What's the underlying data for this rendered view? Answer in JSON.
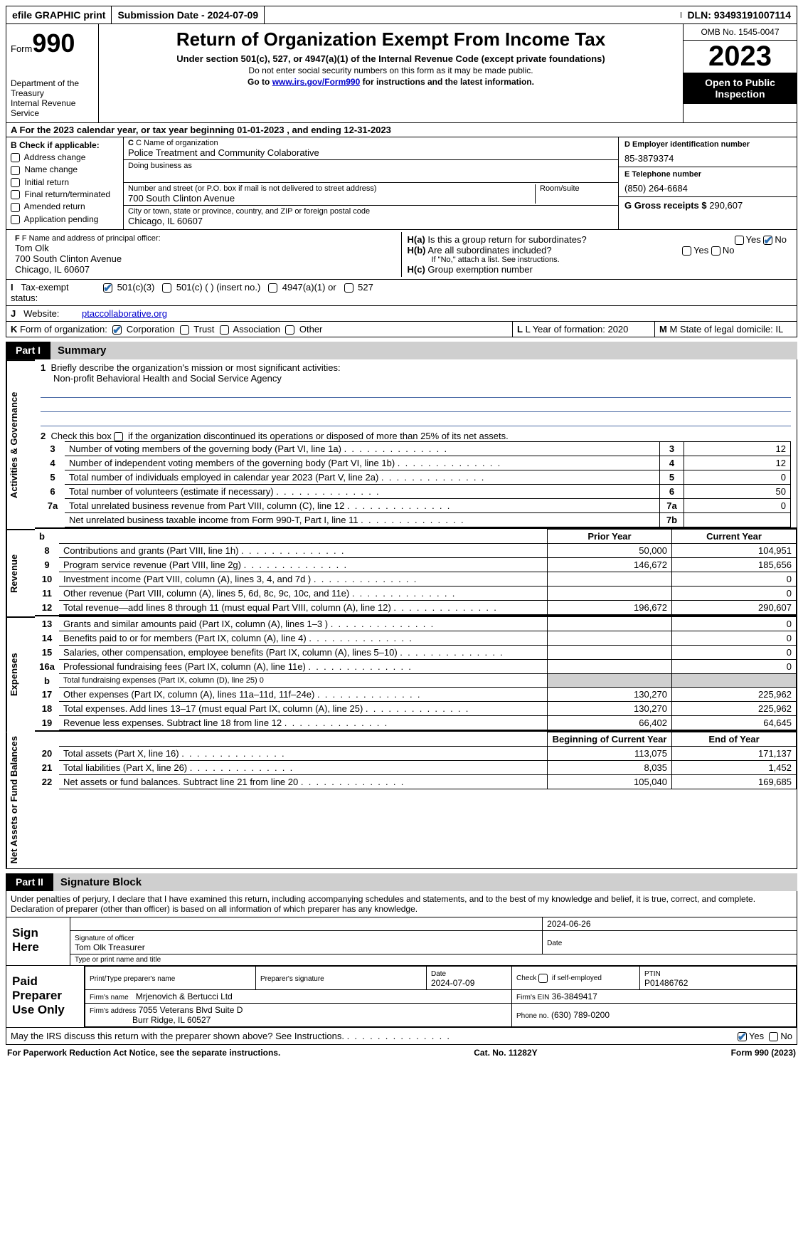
{
  "topbar": {
    "efile": "efile GRAPHIC print",
    "submission": "Submission Date - 2024-07-09",
    "dln": "DLN: 93493191007114"
  },
  "header": {
    "form_label": "Form",
    "form_num": "990",
    "title": "Return of Organization Exempt From Income Tax",
    "sub": "Under section 501(c), 527, or 4947(a)(1) of the Internal Revenue Code (except private foundations)",
    "note1": "Do not enter social security numbers on this form as it may be made public.",
    "note2_pre": "Go to ",
    "note2_link": "www.irs.gov/Form990",
    "note2_post": " for instructions and the latest information.",
    "dept": "Department of the Treasury\nInternal Revenue Service",
    "omb": "OMB No. 1545-0047",
    "year": "2023",
    "open": "Open to Public Inspection"
  },
  "rowA": "A For the 2023 calendar year, or tax year beginning 01-01-2023   , and ending 12-31-2023",
  "colB": {
    "hdr": "B Check if applicable:",
    "items": [
      "Address change",
      "Name change",
      "Initial return",
      "Final return/terminated",
      "Amended return",
      "Application pending"
    ]
  },
  "colC": {
    "name_lbl": "C Name of organization",
    "name": "Police Treatment and Community Colaborative",
    "dba_lbl": "Doing business as",
    "addr_lbl": "Number and street (or P.O. box if mail is not delivered to street address)",
    "addr": "700 South Clinton Avenue",
    "room_lbl": "Room/suite",
    "city_lbl": "City or town, state or province, country, and ZIP or foreign postal code",
    "city": "Chicago, IL  60607"
  },
  "colD": {
    "ein_lbl": "D Employer identification number",
    "ein": "85-3879374",
    "tel_lbl": "E Telephone number",
    "tel": "(850) 264-6684",
    "gross_lbl": "G Gross receipts $",
    "gross": "290,607"
  },
  "rowF": {
    "lbl": "F  Name and address of principal officer:",
    "name": "Tom Olk",
    "addr1": "700 South Clinton Avenue",
    "addr2": "Chicago, IL  60607"
  },
  "rowH": {
    "ha": "H(a)  Is this a group return for subordinates?",
    "hb": "H(b)  Are all subordinates included?",
    "hb_note": "If \"No,\" attach a list. See instructions.",
    "hc": "H(c)  Group exemption number"
  },
  "rowI": {
    "lbl": "I   Tax-exempt status:",
    "o1": "501(c)(3)",
    "o2": "501(c) (  ) (insert no.)",
    "o3": "4947(a)(1) or",
    "o4": "527"
  },
  "rowJ": {
    "lbl": "J   Website:",
    "val": "ptaccollaborative.org"
  },
  "rowK": {
    "lbl": "K Form of organization:",
    "o1": "Corporation",
    "o2": "Trust",
    "o3": "Association",
    "o4": "Other"
  },
  "rowL": {
    "lbl": "L Year of formation:",
    "val": "2020"
  },
  "rowM": {
    "lbl": "M State of legal domicile:",
    "val": "IL"
  },
  "part1": {
    "num": "Part I",
    "title": "Summary"
  },
  "summary": {
    "gov_label": "Activities & Governance",
    "rev_label": "Revenue",
    "exp_label": "Expenses",
    "net_label": "Net Assets or Fund Balances",
    "line1_lbl": "Briefly describe the organization's mission or most significant activities:",
    "line1_val": "Non-profit Behavioral Health and Social Service Agency",
    "line2": "Check this box        if the organization discontinued its operations or disposed of more than 25% of its net assets.",
    "rows_gov": [
      {
        "n": "3",
        "d": "Number of voting members of the governing body (Part VI, line 1a)",
        "box": "3",
        "v": "12"
      },
      {
        "n": "4",
        "d": "Number of independent voting members of the governing body (Part VI, line 1b)",
        "box": "4",
        "v": "12"
      },
      {
        "n": "5",
        "d": "Total number of individuals employed in calendar year 2023 (Part V, line 2a)",
        "box": "5",
        "v": "0"
      },
      {
        "n": "6",
        "d": "Total number of volunteers (estimate if necessary)",
        "box": "6",
        "v": "50"
      },
      {
        "n": "7a",
        "d": "Total unrelated business revenue from Part VIII, column (C), line 12",
        "box": "7a",
        "v": "0"
      },
      {
        "n": "",
        "d": "Net unrelated business taxable income from Form 990-T, Part I, line 11",
        "box": "7b",
        "v": ""
      }
    ],
    "prior_hdr": "Prior Year",
    "curr_hdr": "Current Year",
    "rows_rev": [
      {
        "n": "8",
        "d": "Contributions and grants (Part VIII, line 1h)",
        "p": "50,000",
        "c": "104,951"
      },
      {
        "n": "9",
        "d": "Program service revenue (Part VIII, line 2g)",
        "p": "146,672",
        "c": "185,656"
      },
      {
        "n": "10",
        "d": "Investment income (Part VIII, column (A), lines 3, 4, and 7d )",
        "p": "",
        "c": "0"
      },
      {
        "n": "11",
        "d": "Other revenue (Part VIII, column (A), lines 5, 6d, 8c, 9c, 10c, and 11e)",
        "p": "",
        "c": "0"
      },
      {
        "n": "12",
        "d": "Total revenue—add lines 8 through 11 (must equal Part VIII, column (A), line 12)",
        "p": "196,672",
        "c": "290,607"
      }
    ],
    "rows_exp": [
      {
        "n": "13",
        "d": "Grants and similar amounts paid (Part IX, column (A), lines 1–3 )",
        "p": "",
        "c": "0"
      },
      {
        "n": "14",
        "d": "Benefits paid to or for members (Part IX, column (A), line 4)",
        "p": "",
        "c": "0"
      },
      {
        "n": "15",
        "d": "Salaries, other compensation, employee benefits (Part IX, column (A), lines 5–10)",
        "p": "",
        "c": "0"
      },
      {
        "n": "16a",
        "d": "Professional fundraising fees (Part IX, column (A), line 11e)",
        "p": "",
        "c": "0"
      },
      {
        "n": "b",
        "d": "Total fundraising expenses (Part IX, column (D), line 25) 0",
        "p": "GREY",
        "c": "GREY",
        "small": true
      },
      {
        "n": "17",
        "d": "Other expenses (Part IX, column (A), lines 11a–11d, 11f–24e)",
        "p": "130,270",
        "c": "225,962"
      },
      {
        "n": "18",
        "d": "Total expenses. Add lines 13–17 (must equal Part IX, column (A), line 25)",
        "p": "130,270",
        "c": "225,962"
      },
      {
        "n": "19",
        "d": "Revenue less expenses. Subtract line 18 from line 12",
        "p": "66,402",
        "c": "64,645"
      }
    ],
    "beg_hdr": "Beginning of Current Year",
    "end_hdr": "End of Year",
    "rows_net": [
      {
        "n": "20",
        "d": "Total assets (Part X, line 16)",
        "p": "113,075",
        "c": "171,137"
      },
      {
        "n": "21",
        "d": "Total liabilities (Part X, line 26)",
        "p": "8,035",
        "c": "1,452"
      },
      {
        "n": "22",
        "d": "Net assets or fund balances. Subtract line 21 from line 20",
        "p": "105,040",
        "c": "169,685"
      }
    ]
  },
  "part2": {
    "num": "Part II",
    "title": "Signature Block"
  },
  "perjury": "Under penalties of perjury, I declare that I have examined this return, including accompanying schedules and statements, and to the best of my knowledge and belief, it is true, correct, and complete. Declaration of preparer (other than officer) is based on all information of which preparer has any knowledge.",
  "sign": {
    "here": "Sign Here",
    "sig_lbl": "Signature of officer",
    "date_lbl": "Date",
    "date_val": "2024-06-26",
    "name": "Tom Olk Treasurer",
    "type_lbl": "Type or print name and title"
  },
  "paid": {
    "lbl": "Paid Preparer Use Only",
    "pname_lbl": "Print/Type preparer's name",
    "psig_lbl": "Preparer's signature",
    "pdate_lbl": "Date",
    "pdate": "2024-07-09",
    "pself_lbl": "Check        if self-employed",
    "ptin_lbl": "PTIN",
    "ptin": "P01486762",
    "firm_lbl": "Firm's name",
    "firm": "Mrjenovich & Bertucci Ltd",
    "fein_lbl": "Firm's EIN",
    "fein": "36-3849417",
    "faddr_lbl": "Firm's address",
    "faddr1": "7055 Veterans Blvd Suite D",
    "faddr2": "Burr Ridge, IL  60527",
    "phone_lbl": "Phone no.",
    "phone": "(630) 789-0200"
  },
  "discuss": "May the IRS discuss this return with the preparer shown above? See Instructions.",
  "footer": {
    "paperwork": "For Paperwork Reduction Act Notice, see the separate instructions.",
    "cat": "Cat. No. 11282Y",
    "form": "Form 990 (2023)"
  },
  "yes": "Yes",
  "no": "No",
  "colors": {
    "link": "#0000cc",
    "check": "#2a6db0",
    "grey": "#d0d0d0",
    "rule": "#4a6aa5"
  }
}
